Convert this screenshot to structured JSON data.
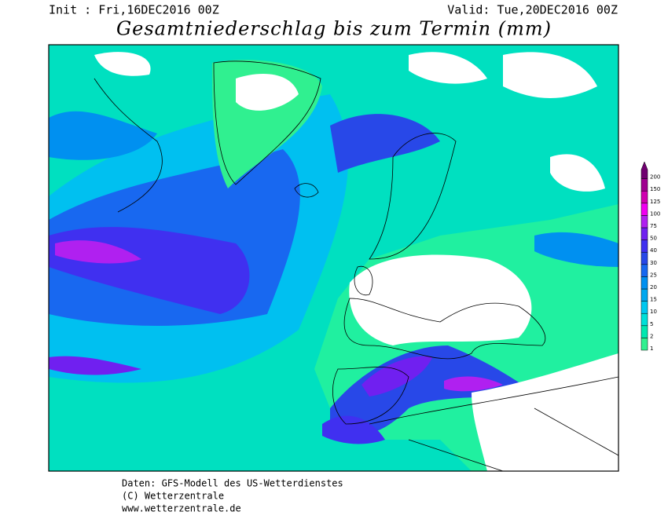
{
  "header": {
    "init": "Init : Fri,16DEC2016 00Z",
    "valid": "Valid: Tue,20DEC2016 00Z",
    "title": "Gesamtniederschlag bis zum Termin (mm)"
  },
  "legend": {
    "levels": [
      {
        "value": 1,
        "color": "#30f090"
      },
      {
        "value": 2,
        "color": "#00e8b0"
      },
      {
        "value": 5,
        "color": "#00e0d8"
      },
      {
        "value": 10,
        "color": "#00c8f0"
      },
      {
        "value": 15,
        "color": "#00a8f0"
      },
      {
        "value": 20,
        "color": "#0090f0"
      },
      {
        "value": 25,
        "color": "#1868f0"
      },
      {
        "value": 30,
        "color": "#2848e8"
      },
      {
        "value": 40,
        "color": "#4030f0"
      },
      {
        "value": 50,
        "color": "#7020f0"
      },
      {
        "value": 75,
        "color": "#b020f0"
      },
      {
        "value": 100,
        "color": "#f000f0"
      },
      {
        "value": 125,
        "color": "#d000b0"
      },
      {
        "value": 150,
        "color": "#a00090"
      },
      {
        "value": 200,
        "color": "#700070"
      }
    ]
  },
  "footer": {
    "line1": "Daten: GFS-Modell des US-Wetterdienstes",
    "line2": "(C) Wetterzentrale",
    "line3": "www.wetterzentrale.de"
  }
}
